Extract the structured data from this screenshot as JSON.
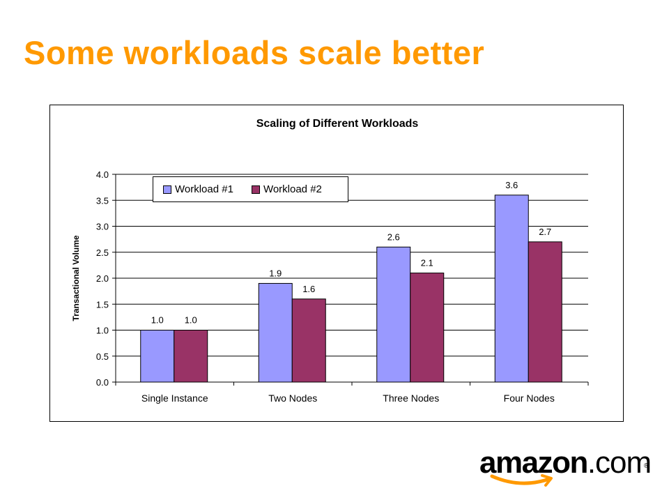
{
  "slide": {
    "title": "Some workloads scale better"
  },
  "logo": {
    "word": "amazon",
    "suffix": ".com",
    "reg_mark": "®"
  },
  "chart_data": {
    "type": "bar",
    "title": "Scaling of Different Workloads",
    "xlabel": "",
    "ylabel": "Transactional Volume",
    "categories": [
      "Single Instance",
      "Two Nodes",
      "Three Nodes",
      "Four Nodes"
    ],
    "series": [
      {
        "name": "Workload #1",
        "values": [
          1.0,
          1.9,
          2.6,
          3.6
        ],
        "color": "#9999ff"
      },
      {
        "name": "Workload #2",
        "values": [
          1.0,
          1.6,
          2.1,
          2.7
        ],
        "color": "#993366"
      }
    ],
    "ylim": [
      0,
      4.0
    ],
    "yticks": [
      "0.0",
      "0.5",
      "1.0",
      "1.5",
      "2.0",
      "2.5",
      "3.0",
      "3.5",
      "4.0"
    ],
    "data_labels": [
      [
        "1.0",
        "1.9",
        "2.6",
        "3.6"
      ],
      [
        "1.0",
        "1.6",
        "2.1",
        "2.7"
      ]
    ],
    "grid": true,
    "legend_position": "top-left"
  }
}
